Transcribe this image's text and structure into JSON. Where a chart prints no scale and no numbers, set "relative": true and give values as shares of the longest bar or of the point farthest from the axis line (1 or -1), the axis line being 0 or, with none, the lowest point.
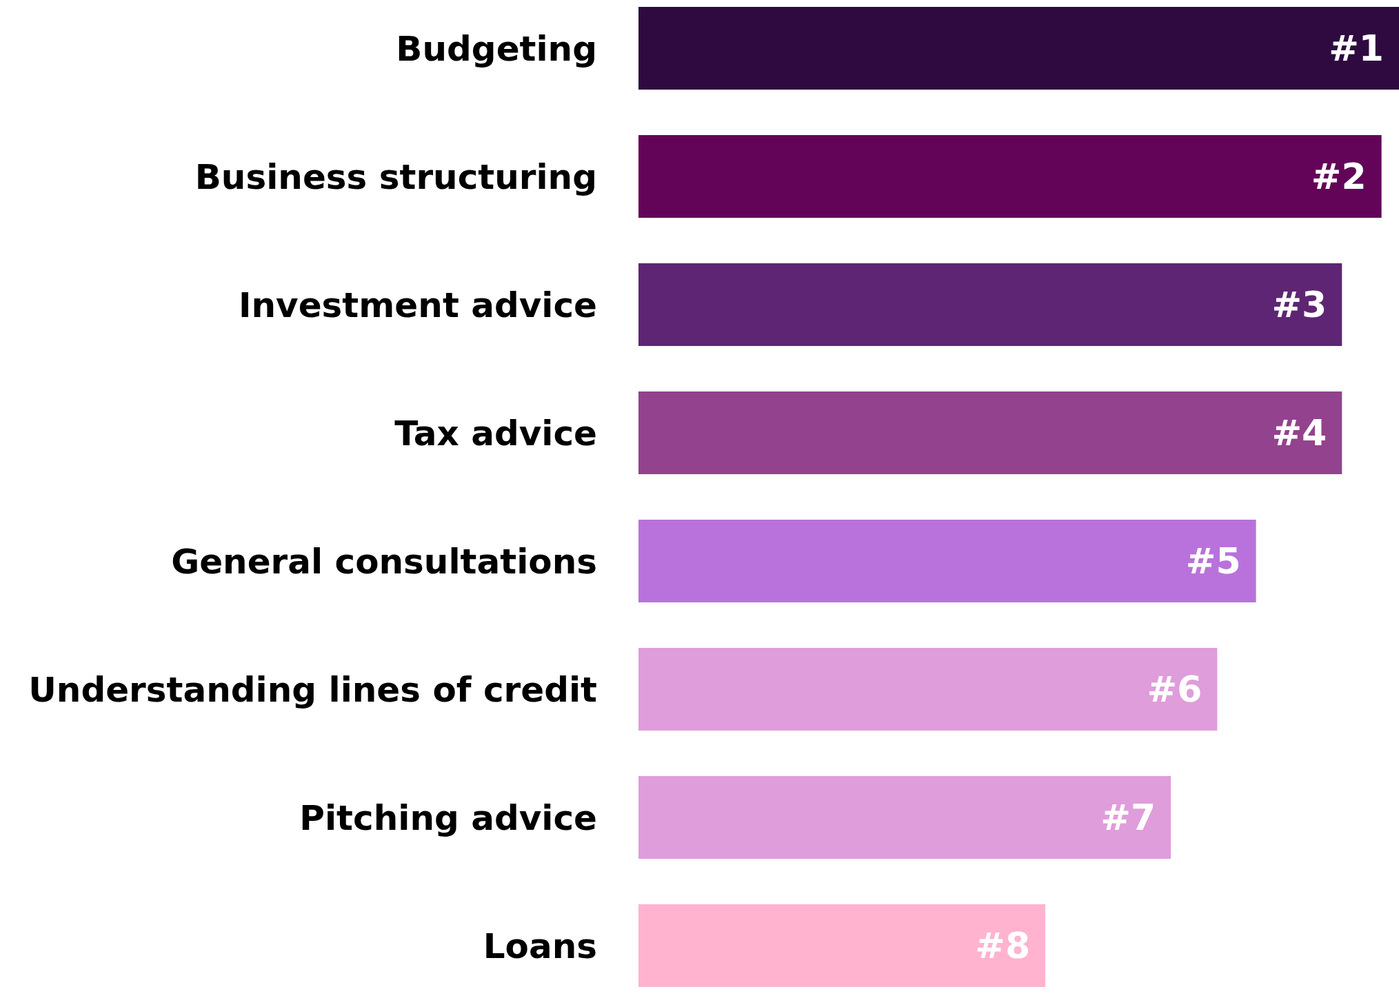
{
  "chart_data": {
    "type": "bar",
    "orientation": "horizontal",
    "relative": true,
    "categories": [
      "Budgeting",
      "Business structuring",
      "Investment advice",
      "Tax advice",
      "General consultations",
      "Understanding lines of credit",
      "Pitching advice",
      "Loans"
    ],
    "values": [
      1,
      0.977,
      0.925,
      0.925,
      0.812,
      0.761,
      0.7,
      0.535
    ],
    "colors": [
      "#2f0a40",
      "#630459",
      "#5e2574",
      "#93428e",
      "#b972dc",
      "#df9ddb",
      "#df9ddb",
      "#ffb3ce"
    ],
    "annotations": [
      {
        "text": "#1",
        "x": 1,
        "y": "Budgeting"
      },
      {
        "text": "#2",
        "x": 0.977,
        "y": "Business structuring"
      },
      {
        "text": "#3",
        "x": 0.925,
        "y": "Investment advice"
      },
      {
        "text": "#4",
        "x": 0.925,
        "y": "Tax advice"
      },
      {
        "text": "#5",
        "x": 0.812,
        "y": "General consultations"
      },
      {
        "text": "#6",
        "x": 0.761,
        "y": "Understanding lines of credit"
      },
      {
        "text": "#7",
        "x": 0.7,
        "y": "Pitching advice"
      },
      {
        "text": "#8",
        "x": 0.535,
        "y": "Loans"
      }
    ]
  }
}
